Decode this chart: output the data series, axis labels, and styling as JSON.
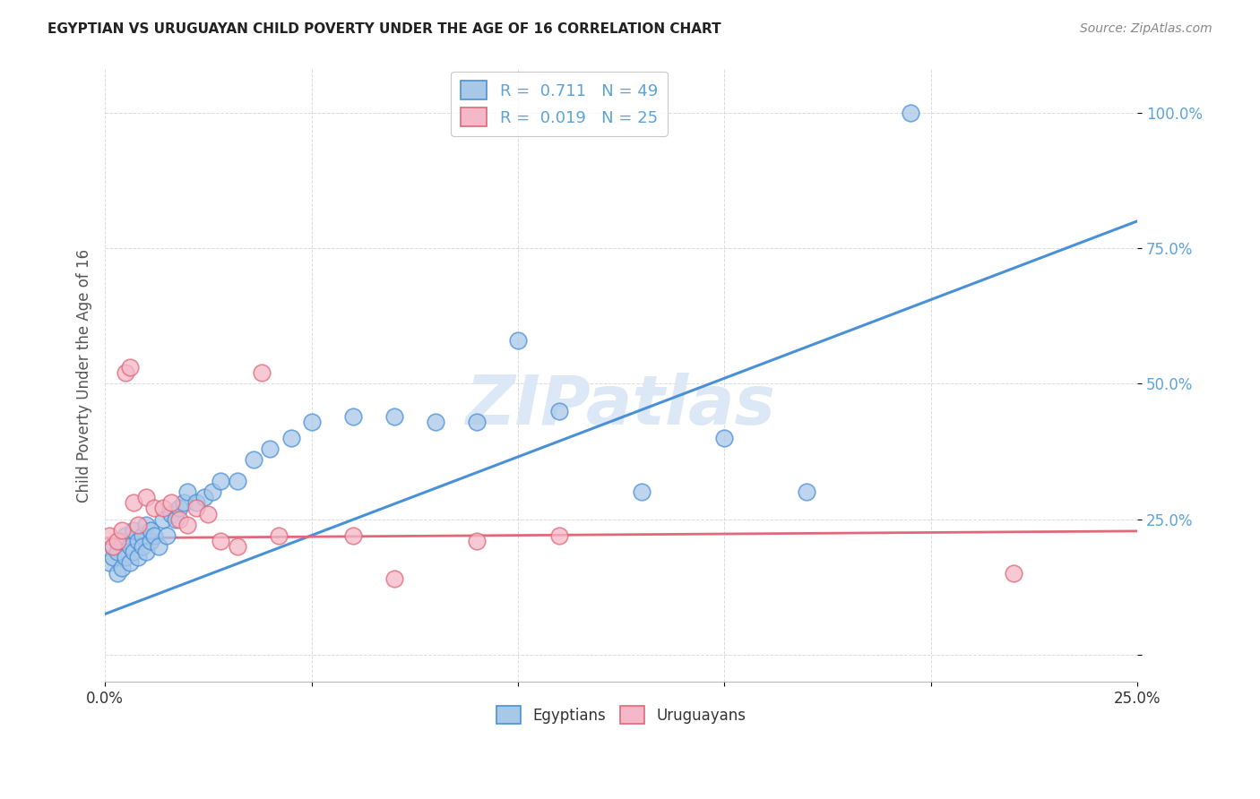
{
  "title": "EGYPTIAN VS URUGUAYAN CHILD POVERTY UNDER THE AGE OF 16 CORRELATION CHART",
  "source": "Source: ZipAtlas.com",
  "ylabel": "Child Poverty Under the Age of 16",
  "xlim": [
    0.0,
    0.25
  ],
  "ylim": [
    -0.05,
    1.08
  ],
  "ytick_vals": [
    0.0,
    0.25,
    0.5,
    0.75,
    1.0
  ],
  "ytick_labels": [
    "",
    "25.0%",
    "50.0%",
    "75.0%",
    "100.0%"
  ],
  "xtick_vals": [
    0.0,
    0.05,
    0.1,
    0.15,
    0.2,
    0.25
  ],
  "r_egyptian": 0.711,
  "n_egyptian": 49,
  "r_uruguayan": 0.019,
  "n_uruguayan": 25,
  "color_egyptian_fill": "#a8c8e8",
  "color_egyptian_edge": "#4a90d9",
  "color_uruguayan_fill": "#f5b8c8",
  "color_uruguayan_edge": "#e06878",
  "color_line_egyptian": "#4a90d9",
  "color_line_uruguayan": "#e06878",
  "tick_label_color": "#5ba3d9",
  "watermark": "ZIPatlas",
  "watermark_color": "#dce8f5",
  "background_color": "#ffffff",
  "grid_color": "#cccccc",
  "title_color": "#222222",
  "source_color": "#888888",
  "axis_label_color": "#555555",
  "egyptian_x": [
    0.001,
    0.002,
    0.002,
    0.003,
    0.003,
    0.004,
    0.004,
    0.005,
    0.005,
    0.006,
    0.006,
    0.007,
    0.007,
    0.008,
    0.008,
    0.009,
    0.009,
    0.01,
    0.01,
    0.011,
    0.011,
    0.012,
    0.013,
    0.014,
    0.015,
    0.016,
    0.017,
    0.018,
    0.019,
    0.02,
    0.022,
    0.024,
    0.026,
    0.028,
    0.032,
    0.036,
    0.04,
    0.045,
    0.05,
    0.06,
    0.07,
    0.08,
    0.09,
    0.1,
    0.11,
    0.13,
    0.15,
    0.17,
    0.195
  ],
  "egyptian_y": [
    0.17,
    0.18,
    0.2,
    0.15,
    0.19,
    0.21,
    0.16,
    0.18,
    0.22,
    0.17,
    0.2,
    0.19,
    0.23,
    0.21,
    0.18,
    0.22,
    0.2,
    0.19,
    0.24,
    0.21,
    0.23,
    0.22,
    0.2,
    0.25,
    0.22,
    0.26,
    0.25,
    0.27,
    0.28,
    0.3,
    0.28,
    0.29,
    0.3,
    0.32,
    0.32,
    0.36,
    0.38,
    0.4,
    0.43,
    0.44,
    0.44,
    0.43,
    0.43,
    0.58,
    0.45,
    0.3,
    0.4,
    0.3,
    1.0
  ],
  "uruguayan_x": [
    0.001,
    0.002,
    0.003,
    0.004,
    0.005,
    0.006,
    0.007,
    0.008,
    0.01,
    0.012,
    0.014,
    0.016,
    0.018,
    0.02,
    0.022,
    0.025,
    0.028,
    0.032,
    0.038,
    0.042,
    0.06,
    0.07,
    0.09,
    0.11,
    0.22
  ],
  "uruguayan_y": [
    0.22,
    0.2,
    0.21,
    0.23,
    0.52,
    0.53,
    0.28,
    0.24,
    0.29,
    0.27,
    0.27,
    0.28,
    0.25,
    0.24,
    0.27,
    0.26,
    0.21,
    0.2,
    0.52,
    0.22,
    0.22,
    0.14,
    0.21,
    0.22,
    0.15
  ],
  "line_e_x0": 0.0,
  "line_e_x1": 0.25,
  "line_e_y0": 0.075,
  "line_e_y1": 0.8,
  "line_u_x0": 0.0,
  "line_u_x1": 0.25,
  "line_u_y0": 0.215,
  "line_u_y1": 0.228
}
